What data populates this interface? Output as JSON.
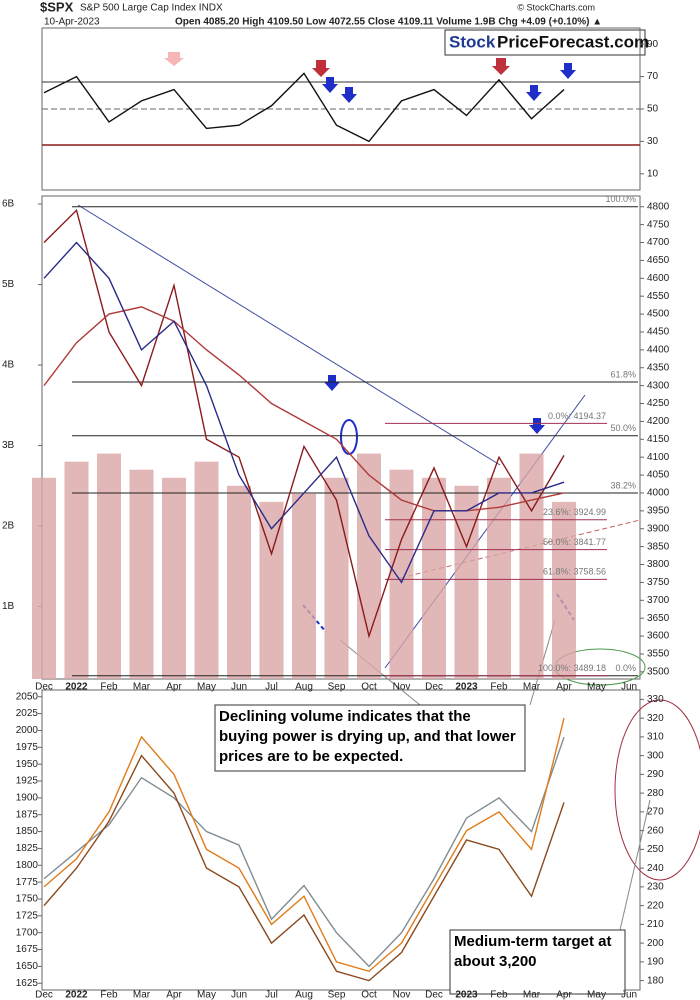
{
  "header": {
    "symbol": "$SPX",
    "name": "S&P 500 Large Cap Index INDX",
    "date": "10-Apr-2023",
    "quote": "Open 4085.20  High 4109.50  Low 4072.55  Close 4109.11  Volume 1.9B  Chg +4.09 (+0.10%) ▲",
    "copyright": "© StockCharts.com",
    "brand_a": "Stock",
    "brand_b": "PriceForecast.com"
  },
  "chart_data": [
    {
      "type": "line",
      "ylim": [
        0,
        100
      ],
      "yticks": [
        10,
        30,
        50,
        70,
        90
      ],
      "series": [
        {
          "color": "#111111",
          "values": [
            60,
            70,
            42,
            55,
            62,
            38,
            40,
            52,
            72,
            40,
            30,
            55,
            62,
            46,
            68,
            44,
            62,
            null,
            null
          ]
        }
      ]
    },
    {
      "type": "line",
      "categories": [
        "Dec",
        "2022",
        "Feb",
        "Mar",
        "Apr",
        "May",
        "Jun",
        "Jul",
        "Aug",
        "Sep",
        "Oct",
        "Nov",
        "Dec",
        "2023",
        "Feb",
        "Mar",
        "Apr",
        "May",
        "Jun"
      ],
      "ylim": [
        3480,
        4830
      ],
      "yticks": [
        3500,
        3550,
        3600,
        3650,
        3700,
        3750,
        3800,
        3850,
        3900,
        3950,
        4000,
        4050,
        4100,
        4150,
        4200,
        4250,
        4300,
        4350,
        4400,
        4450,
        4500,
        4550,
        4600,
        4650,
        4700,
        4750,
        4800
      ],
      "series": [
        {
          "color": "#8b1a1a",
          "values": [
            4700,
            4790,
            4450,
            4300,
            4580,
            4150,
            4100,
            3830,
            4130,
            3980,
            3600,
            3870,
            4070,
            3850,
            4100,
            3950,
            4105,
            null,
            null
          ]
        },
        {
          "color": "#b03a3a",
          "values": [
            4300,
            4420,
            4500,
            4520,
            4480,
            4400,
            4330,
            4250,
            4200,
            4150,
            4050,
            3980,
            3950,
            3950,
            3960,
            3980,
            4000,
            null,
            null
          ]
        },
        {
          "color": "#2a2a8a",
          "values": [
            4600,
            4700,
            4600,
            4400,
            4480,
            4300,
            4050,
            3900,
            4000,
            4100,
            3880,
            3750,
            3950,
            3950,
            4000,
            4000,
            4030,
            null,
            null
          ]
        }
      ],
      "y2lim": [
        0.1,
        6.1
      ],
      "y2ticks": [
        {
          "value": 1,
          "label": "1B"
        },
        {
          "value": 2,
          "label": "2B"
        },
        {
          "value": 3,
          "label": "3B"
        },
        {
          "value": 4,
          "label": "4B"
        },
        {
          "value": 5,
          "label": "5B"
        },
        {
          "value": 6,
          "label": "6B"
        }
      ],
      "volume": {
        "color": "#d9a5a5",
        "values": [
          2.6,
          2.8,
          2.9,
          2.7,
          2.6,
          2.8,
          2.5,
          2.3,
          2.4,
          2.6,
          2.9,
          2.7,
          2.6,
          2.5,
          2.6,
          2.9,
          2.3,
          null,
          null
        ]
      },
      "levels": [
        {
          "value": 4800,
          "label": "100.0%"
        },
        {
          "value": 4310,
          "label": "61.8%"
        },
        {
          "value": 4160,
          "label": "50.0%"
        },
        {
          "value": 4000,
          "label": "38.2%"
        },
        {
          "value": 3489.18,
          "label": "0.0%"
        }
      ],
      "levels_b": [
        {
          "value": 4194.37,
          "label": "0.0%: 4194.37"
        },
        {
          "value": 3924.99,
          "label": "23.6%: 3924.99"
        },
        {
          "value": 3841.77,
          "label": "50.0%: 3841.77"
        },
        {
          "value": 3758.56,
          "label": "61.8%: 3758.56"
        },
        {
          "value": 3489.18,
          "label": "100.0%: 3489.18"
        }
      ],
      "note": "Declining volume indicates that the buying power is drying up, and that lower prices are to be expected."
    },
    {
      "type": "line",
      "categories": [
        "Dec",
        "2022",
        "Feb",
        "Mar",
        "Apr",
        "May",
        "Jun",
        "Jul",
        "Aug",
        "Sep",
        "Oct",
        "Nov",
        "Dec",
        "2023",
        "Feb",
        "Mar",
        "Apr",
        "May",
        "Jun"
      ],
      "ylim": [
        1615,
        2060
      ],
      "yticks": [
        1625,
        1650,
        1675,
        1700,
        1725,
        1750,
        1775,
        1800,
        1825,
        1850,
        1875,
        1900,
        1925,
        1950,
        1975,
        2000,
        2025,
        2050
      ],
      "y2lim": [
        175,
        335
      ],
      "y2ticks": [
        180,
        190,
        200,
        210,
        220,
        230,
        240,
        250,
        260,
        270,
        280,
        290,
        300,
        310,
        320,
        330
      ],
      "series": [
        {
          "color": "#7f8c94",
          "values": [
            1780,
            1820,
            1860,
            1930,
            1900,
            1850,
            1830,
            1720,
            1770,
            1700,
            1650,
            1700,
            1780,
            1870,
            1900,
            1850,
            1990,
            null,
            null
          ]
        },
        {
          "color": "#e07b1a",
          "axis": "y2",
          "values": [
            230,
            245,
            270,
            310,
            290,
            250,
            240,
            210,
            225,
            190,
            185,
            200,
            230,
            260,
            270,
            250,
            320,
            null,
            null
          ]
        },
        {
          "color": "#8b4a1e",
          "axis": "y2",
          "values": [
            220,
            240,
            265,
            300,
            280,
            240,
            230,
            200,
            215,
            185,
            180,
            195,
            225,
            255,
            250,
            225,
            275,
            null,
            null
          ]
        }
      ],
      "note": "Medium-term target at about 3,200"
    }
  ]
}
